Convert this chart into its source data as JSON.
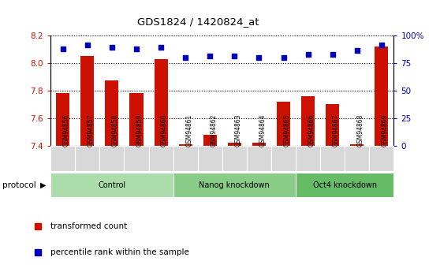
{
  "title": "GDS1824 / 1420824_at",
  "samples": [
    "GSM94856",
    "GSM94857",
    "GSM94858",
    "GSM94859",
    "GSM94860",
    "GSM94861",
    "GSM94862",
    "GSM94863",
    "GSM94864",
    "GSM94865",
    "GSM94866",
    "GSM94867",
    "GSM94868",
    "GSM94869"
  ],
  "red_values": [
    7.78,
    8.05,
    7.87,
    7.78,
    8.03,
    7.41,
    7.48,
    7.42,
    7.42,
    7.72,
    7.76,
    7.7,
    7.41,
    8.12
  ],
  "blue_values": [
    88,
    91,
    89,
    88,
    89,
    80,
    81,
    81,
    80,
    80,
    83,
    83,
    86,
    91
  ],
  "ylim_left": [
    7.4,
    8.2
  ],
  "ylim_right": [
    0,
    100
  ],
  "yticks_left": [
    7.4,
    7.6,
    7.8,
    8.0,
    8.2
  ],
  "yticks_right": [
    0,
    25,
    50,
    75,
    100
  ],
  "ytick_labels_right": [
    "0",
    "25",
    "50",
    "75",
    "100%"
  ],
  "groups": [
    {
      "label": "Control",
      "start": 0,
      "end": 5,
      "color": "#aaddaa"
    },
    {
      "label": "Nanog knockdown",
      "start": 5,
      "end": 10,
      "color": "#88cc88"
    },
    {
      "label": "Oct4 knockdown",
      "start": 10,
      "end": 14,
      "color": "#66bb66"
    }
  ],
  "red_color": "#cc1100",
  "blue_color": "#0000bb",
  "grid_color": "#000000",
  "tick_label_color_left": "#cc1100",
  "tick_label_color_right": "#0000bb",
  "bar_width": 0.55,
  "protocol_label": "protocol",
  "legend_red": "transformed count",
  "legend_blue": "percentile rank within the sample",
  "sample_cell_color": "#d8d8d8",
  "plot_bg_color": "#ffffff"
}
